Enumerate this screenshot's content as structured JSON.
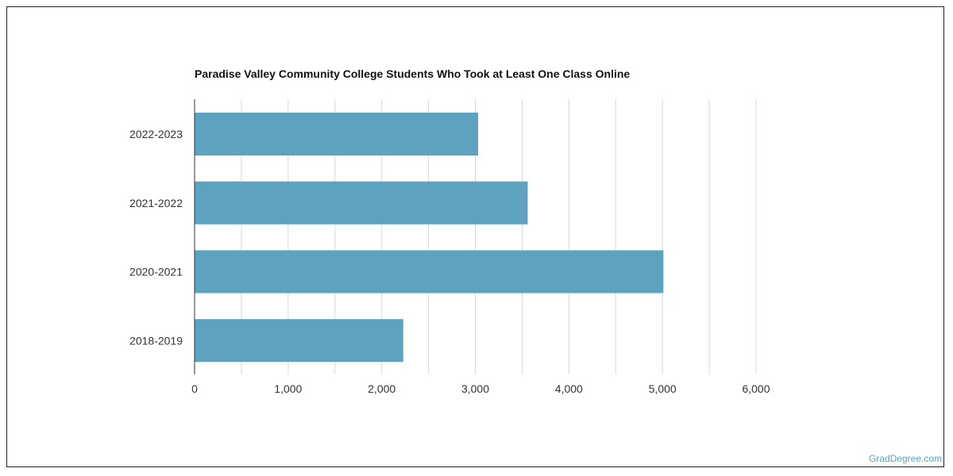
{
  "chart_data": {
    "type": "bar",
    "orientation": "horizontal",
    "title": "Paradise Valley Community College Students Who Took at Least One Class Online",
    "categories": [
      "2022-2023",
      "2021-2022",
      "2020-2021",
      "2018-2019"
    ],
    "values": [
      3030,
      3560,
      5010,
      2230
    ],
    "xlim": [
      0,
      6000
    ],
    "xticks": [
      0,
      1000,
      2000,
      3000,
      4000,
      5000,
      6000
    ],
    "xtick_labels": [
      "0",
      "1,000",
      "2,000",
      "3,000",
      "4,000",
      "5,000",
      "6,000"
    ],
    "grid": true,
    "bar_color": "#5da2bf"
  },
  "footer": {
    "attribution": "GradDegree.com"
  },
  "colors": {
    "grid": "#d8d8d8",
    "axis": "#333333",
    "attribution": "#5da2bf"
  }
}
